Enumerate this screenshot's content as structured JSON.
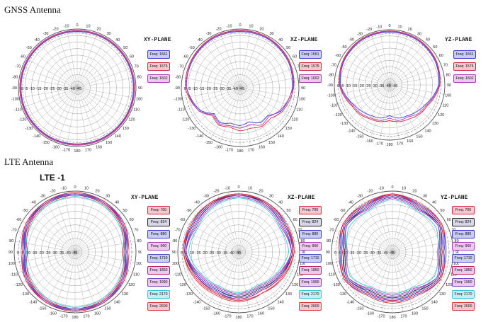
{
  "sections": {
    "gnss_title": "GNSS Antenna",
    "lte_title": "LTE Antenna",
    "lte_subtitle": "LTE -1"
  },
  "angle_labels": [
    "0",
    "10",
    "20",
    "30",
    "40",
    "50",
    "60",
    "70",
    "80",
    "90",
    "100",
    "110",
    "120",
    "130",
    "140",
    "150",
    "160",
    "170",
    "180",
    "-170",
    "-160",
    "-150",
    "-140",
    "-130",
    "-120",
    "-110",
    "-100",
    "-90",
    "-80",
    "-70",
    "-60",
    "-50",
    "-40",
    "-30",
    "-20",
    "-10"
  ],
  "radial_scale": "0  -5  -10 -15 -20 -25 -30 -35 -40 -45",
  "colors": {
    "f1561": "#3b3bd6",
    "f1575": "#d7263d",
    "f1602": "#b23ab8",
    "f700": "#d7263d",
    "f824": "#222222",
    "f880": "#3b3bd6",
    "f960": "#b23ab8",
    "f1710": "#4a4ad0",
    "f1850": "#c2185b",
    "f1990": "#7b3fc4",
    "f2170": "#33c6d6",
    "f2600": "#e0303a"
  },
  "chart_data": [
    {
      "type": "polar-line",
      "id": "gnss-xy",
      "title": "XY-PLANE",
      "unit": "dB",
      "rlim": [
        -45,
        0
      ],
      "theta_deg": [
        0,
        30,
        60,
        90,
        120,
        150,
        180,
        210,
        240,
        270,
        300,
        330
      ],
      "series": [
        {
          "name": "Freq: 1561",
          "color": "#3b3bd6",
          "values": [
            -2,
            -2,
            -2,
            -2,
            -2,
            -2,
            -2,
            -2,
            -2,
            -2,
            -2,
            -2
          ]
        },
        {
          "name": "Freq: 1575",
          "color": "#d7263d",
          "values": [
            -1.5,
            -1.5,
            -1.5,
            -1.5,
            -1.5,
            -1.5,
            -1.5,
            -1.5,
            -1.5,
            -1.5,
            -1.5,
            -1.5
          ]
        },
        {
          "name": "Freq: 1602",
          "color": "#b23ab8",
          "values": [
            -1,
            -1,
            -1,
            -1,
            -1,
            -1,
            -1,
            -1,
            -1,
            -1,
            -1,
            -1
          ]
        }
      ]
    },
    {
      "type": "polar-line",
      "id": "gnss-xz",
      "title": "XZ-PLANE",
      "unit": "dB",
      "rlim": [
        -45,
        0
      ],
      "theta_deg": [
        0,
        30,
        60,
        90,
        120,
        135,
        150,
        165,
        180,
        195,
        210,
        225,
        240,
        270,
        300,
        330
      ],
      "series": [
        {
          "name": "Freq: 1561",
          "color": "#3b3bd6",
          "values": [
            -2,
            -2,
            -3,
            -5,
            -9,
            -15,
            -14,
            -18,
            -16,
            -17,
            -14,
            -17,
            -10,
            -4,
            -3,
            -2
          ]
        },
        {
          "name": "Freq: 1575",
          "color": "#d7263d",
          "values": [
            -1,
            -1,
            -2,
            -4,
            -8,
            -12,
            -11,
            -13,
            -12,
            -14,
            -12,
            -15,
            -9,
            -3,
            -2,
            -1
          ]
        },
        {
          "name": "Freq: 1602",
          "color": "#b23ab8",
          "values": [
            -1.5,
            -1.5,
            -2.5,
            -4.5,
            -10,
            -14,
            -12,
            -16,
            -14,
            -15,
            -13,
            -16,
            -9,
            -4,
            -2.5,
            -1.5
          ]
        }
      ]
    },
    {
      "type": "polar-line",
      "id": "gnss-yz",
      "title": "YZ-PLANE",
      "unit": "dB",
      "rlim": [
        -45,
        0
      ],
      "theta_deg": [
        0,
        30,
        60,
        90,
        120,
        135,
        150,
        165,
        180,
        195,
        210,
        225,
        240,
        270,
        300,
        330
      ],
      "series": [
        {
          "name": "Freq: 1561",
          "color": "#3b3bd6",
          "values": [
            -2,
            -2,
            -3,
            -5,
            -12,
            -14,
            -16,
            -17,
            -20,
            -17,
            -16,
            -14,
            -12,
            -5,
            -3,
            -2
          ]
        },
        {
          "name": "Freq: 1575",
          "color": "#d7263d",
          "values": [
            -1,
            -1,
            -2,
            -4,
            -10,
            -11,
            -13,
            -14,
            -16,
            -14,
            -13,
            -11,
            -10,
            -4,
            -2,
            -1
          ]
        },
        {
          "name": "Freq: 1602",
          "color": "#b23ab8",
          "values": [
            -1.5,
            -1.5,
            -2.5,
            -4.5,
            -11,
            -12,
            -15,
            -15,
            -18,
            -15,
            -14,
            -12,
            -11,
            -4.5,
            -2.5,
            -1.5
          ]
        }
      ]
    },
    {
      "type": "polar-line",
      "id": "lte-xy",
      "title": "XY-PLANE",
      "unit": "dB",
      "rlim": [
        -45,
        0
      ],
      "theta_deg": [
        0,
        30,
        60,
        90,
        120,
        150,
        180,
        210,
        240,
        270,
        300,
        330
      ],
      "series": [
        {
          "name": "Freq: 700",
          "color": "#d7263d",
          "values": [
            -3,
            -4,
            -6,
            -10,
            -6,
            -4,
            -3,
            -4,
            -6,
            -10,
            -6,
            -4
          ]
        },
        {
          "name": "Freq: 824",
          "color": "#222222",
          "values": [
            -2,
            -3,
            -5,
            -9,
            -5,
            -3,
            -2,
            -3,
            -5,
            -9,
            -5,
            -3
          ]
        },
        {
          "name": "Freq: 880",
          "color": "#3b3bd6",
          "values": [
            -2,
            -2,
            -4,
            -8,
            -4,
            -2,
            -2,
            -2,
            -4,
            -8,
            -4,
            -2
          ]
        },
        {
          "name": "Freq: 960",
          "color": "#b23ab8",
          "values": [
            -1,
            -2,
            -3,
            -7,
            -3,
            -2,
            -1,
            -2,
            -3,
            -7,
            -3,
            -2
          ]
        },
        {
          "name": "Freq: 1710",
          "color": "#4a4ad0",
          "values": [
            -3,
            -3,
            -5,
            -8,
            -5,
            -3,
            -3,
            -3,
            -5,
            -8,
            -5,
            -3
          ]
        },
        {
          "name": "Freq: 1850",
          "color": "#c2185b",
          "values": [
            -2,
            -3,
            -5,
            -9,
            -5,
            -3,
            -2,
            -3,
            -5,
            -9,
            -5,
            -3
          ]
        },
        {
          "name": "Freq: 1990",
          "color": "#7b3fc4",
          "values": [
            -2,
            -3,
            -4,
            -7,
            -4,
            -3,
            -2,
            -3,
            -4,
            -7,
            -4,
            -3
          ]
        },
        {
          "name": "Freq: 2170",
          "color": "#33c6d6",
          "values": [
            -4,
            -5,
            -7,
            -9,
            -7,
            -5,
            -4,
            -5,
            -7,
            -9,
            -7,
            -5
          ]
        },
        {
          "name": "Freq: 2600",
          "color": "#e0303a",
          "values": [
            -1,
            -2,
            -3,
            -6,
            -3,
            -2,
            -1,
            -2,
            -3,
            -6,
            -3,
            -2
          ]
        }
      ]
    },
    {
      "type": "polar-line",
      "id": "lte-xz",
      "title": "XZ-PLANE",
      "unit": "dB",
      "rlim": [
        -45,
        0
      ],
      "theta_deg": [
        0,
        30,
        60,
        90,
        120,
        150,
        180,
        210,
        240,
        270,
        300,
        330
      ],
      "series": [
        {
          "name": "Freq: 700",
          "color": "#d7263d",
          "values": [
            -2,
            -3,
            -5,
            -4,
            -8,
            -10,
            -9,
            -10,
            -8,
            -4,
            -5,
            -3
          ]
        },
        {
          "name": "Freq: 824",
          "color": "#222222",
          "values": [
            -3,
            -4,
            -6,
            -5,
            -10,
            -14,
            -12,
            -13,
            -10,
            -5,
            -6,
            -4
          ]
        },
        {
          "name": "Freq: 880",
          "color": "#3b3bd6",
          "values": [
            -2,
            -3,
            -5,
            -5,
            -9,
            -12,
            -10,
            -12,
            -9,
            -5,
            -5,
            -3
          ]
        },
        {
          "name": "Freq: 960",
          "color": "#b23ab8",
          "values": [
            -4,
            -6,
            -9,
            -6,
            -12,
            -16,
            -14,
            -15,
            -12,
            -6,
            -9,
            -6
          ]
        },
        {
          "name": "Freq: 1710",
          "color": "#4a4ad0",
          "values": [
            -3,
            -5,
            -7,
            -6,
            -10,
            -13,
            -11,
            -13,
            -10,
            -6,
            -7,
            -5
          ]
        },
        {
          "name": "Freq: 1850",
          "color": "#c2185b",
          "values": [
            -2,
            -4,
            -6,
            -5,
            -9,
            -12,
            -10,
            -11,
            -9,
            -5,
            -6,
            -4
          ]
        },
        {
          "name": "Freq: 1990",
          "color": "#7b3fc4",
          "values": [
            -3,
            -5,
            -8,
            -6,
            -11,
            -15,
            -13,
            -14,
            -11,
            -6,
            -8,
            -5
          ]
        },
        {
          "name": "Freq: 2170",
          "color": "#33c6d6",
          "values": [
            -5,
            -7,
            -10,
            -8,
            -13,
            -17,
            -15,
            -16,
            -13,
            -8,
            -10,
            -7
          ]
        },
        {
          "name": "Freq: 2600",
          "color": "#e0303a",
          "values": [
            -2,
            -3,
            -4,
            -4,
            -7,
            -10,
            -8,
            -9,
            -7,
            -4,
            -4,
            -3
          ]
        }
      ]
    },
    {
      "type": "polar-line",
      "id": "lte-yz",
      "title": "YZ-PLANE",
      "unit": "dB",
      "rlim": [
        -45,
        0
      ],
      "theta_deg": [
        0,
        30,
        60,
        90,
        120,
        150,
        180,
        210,
        240,
        270,
        300,
        330
      ],
      "series": [
        {
          "name": "Freq: 700",
          "color": "#d7263d",
          "values": [
            -3,
            -6,
            -4,
            -8,
            -5,
            -10,
            -9,
            -10,
            -5,
            -8,
            -4,
            -6
          ]
        },
        {
          "name": "Freq: 824",
          "color": "#222222",
          "values": [
            -4,
            -8,
            -5,
            -10,
            -6,
            -12,
            -11,
            -12,
            -6,
            -10,
            -5,
            -8
          ]
        },
        {
          "name": "Freq: 880",
          "color": "#3b3bd6",
          "values": [
            -2,
            -5,
            -3,
            -7,
            -4,
            -9,
            -8,
            -9,
            -4,
            -7,
            -3,
            -5
          ]
        },
        {
          "name": "Freq: 960",
          "color": "#b23ab8",
          "values": [
            -5,
            -9,
            -6,
            -12,
            -7,
            -14,
            -13,
            -14,
            -7,
            -12,
            -6,
            -9
          ]
        },
        {
          "name": "Freq: 1710",
          "color": "#4a4ad0",
          "values": [
            -3,
            -7,
            -5,
            -9,
            -6,
            -11,
            -10,
            -11,
            -6,
            -9,
            -5,
            -7
          ]
        },
        {
          "name": "Freq: 1850",
          "color": "#c2185b",
          "values": [
            -2,
            -6,
            -4,
            -8,
            -5,
            -10,
            -9,
            -10,
            -5,
            -8,
            -4,
            -6
          ]
        },
        {
          "name": "Freq: 1990",
          "color": "#7b3fc4",
          "values": [
            -4,
            -8,
            -6,
            -11,
            -7,
            -13,
            -12,
            -13,
            -7,
            -11,
            -6,
            -8
          ]
        },
        {
          "name": "Freq: 2170",
          "color": "#33c6d6",
          "values": [
            -6,
            -10,
            -8,
            -12,
            -9,
            -15,
            -14,
            -15,
            -9,
            -12,
            -8,
            -10
          ]
        },
        {
          "name": "Freq: 2600",
          "color": "#e0303a",
          "values": [
            -2,
            -4,
            -3,
            -6,
            -4,
            -8,
            -7,
            -8,
            -4,
            -6,
            -3,
            -4
          ]
        }
      ]
    }
  ]
}
